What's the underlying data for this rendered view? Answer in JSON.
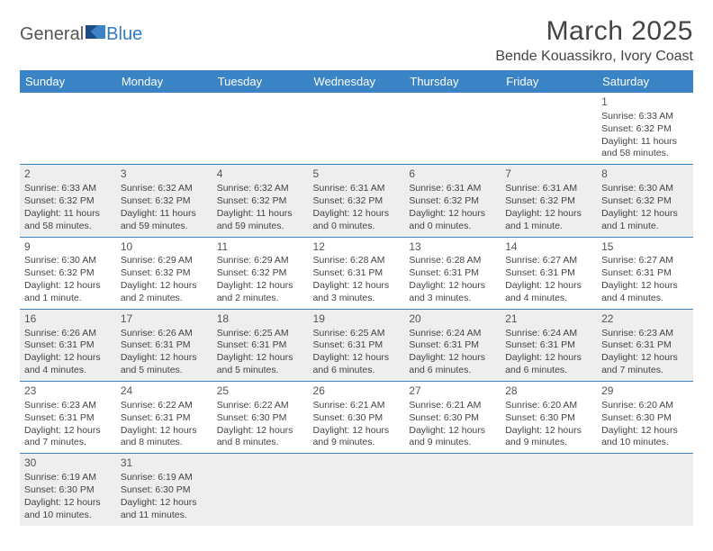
{
  "logo": {
    "general": "General",
    "blue": "Blue"
  },
  "title": "March 2025",
  "location": "Bende Kouassikro, Ivory Coast",
  "colors": {
    "header_bg": "#3a84c5",
    "header_text": "#ffffff",
    "border": "#3a84c5",
    "shade": "#eeeeee",
    "logo_blue": "#2f7ac0",
    "text": "#444444"
  },
  "day_headers": [
    "Sunday",
    "Monday",
    "Tuesday",
    "Wednesday",
    "Thursday",
    "Friday",
    "Saturday"
  ],
  "weeks": [
    [
      null,
      null,
      null,
      null,
      null,
      null,
      {
        "n": "1",
        "sr": "Sunrise: 6:33 AM",
        "ss": "Sunset: 6:32 PM",
        "dl1": "Daylight: 11 hours",
        "dl2": "and 58 minutes."
      }
    ],
    [
      {
        "n": "2",
        "sr": "Sunrise: 6:33 AM",
        "ss": "Sunset: 6:32 PM",
        "dl1": "Daylight: 11 hours",
        "dl2": "and 58 minutes."
      },
      {
        "n": "3",
        "sr": "Sunrise: 6:32 AM",
        "ss": "Sunset: 6:32 PM",
        "dl1": "Daylight: 11 hours",
        "dl2": "and 59 minutes."
      },
      {
        "n": "4",
        "sr": "Sunrise: 6:32 AM",
        "ss": "Sunset: 6:32 PM",
        "dl1": "Daylight: 11 hours",
        "dl2": "and 59 minutes."
      },
      {
        "n": "5",
        "sr": "Sunrise: 6:31 AM",
        "ss": "Sunset: 6:32 PM",
        "dl1": "Daylight: 12 hours",
        "dl2": "and 0 minutes."
      },
      {
        "n": "6",
        "sr": "Sunrise: 6:31 AM",
        "ss": "Sunset: 6:32 PM",
        "dl1": "Daylight: 12 hours",
        "dl2": "and 0 minutes."
      },
      {
        "n": "7",
        "sr": "Sunrise: 6:31 AM",
        "ss": "Sunset: 6:32 PM",
        "dl1": "Daylight: 12 hours",
        "dl2": "and 1 minute."
      },
      {
        "n": "8",
        "sr": "Sunrise: 6:30 AM",
        "ss": "Sunset: 6:32 PM",
        "dl1": "Daylight: 12 hours",
        "dl2": "and 1 minute."
      }
    ],
    [
      {
        "n": "9",
        "sr": "Sunrise: 6:30 AM",
        "ss": "Sunset: 6:32 PM",
        "dl1": "Daylight: 12 hours",
        "dl2": "and 1 minute."
      },
      {
        "n": "10",
        "sr": "Sunrise: 6:29 AM",
        "ss": "Sunset: 6:32 PM",
        "dl1": "Daylight: 12 hours",
        "dl2": "and 2 minutes."
      },
      {
        "n": "11",
        "sr": "Sunrise: 6:29 AM",
        "ss": "Sunset: 6:32 PM",
        "dl1": "Daylight: 12 hours",
        "dl2": "and 2 minutes."
      },
      {
        "n": "12",
        "sr": "Sunrise: 6:28 AM",
        "ss": "Sunset: 6:31 PM",
        "dl1": "Daylight: 12 hours",
        "dl2": "and 3 minutes."
      },
      {
        "n": "13",
        "sr": "Sunrise: 6:28 AM",
        "ss": "Sunset: 6:31 PM",
        "dl1": "Daylight: 12 hours",
        "dl2": "and 3 minutes."
      },
      {
        "n": "14",
        "sr": "Sunrise: 6:27 AM",
        "ss": "Sunset: 6:31 PM",
        "dl1": "Daylight: 12 hours",
        "dl2": "and 4 minutes."
      },
      {
        "n": "15",
        "sr": "Sunrise: 6:27 AM",
        "ss": "Sunset: 6:31 PM",
        "dl1": "Daylight: 12 hours",
        "dl2": "and 4 minutes."
      }
    ],
    [
      {
        "n": "16",
        "sr": "Sunrise: 6:26 AM",
        "ss": "Sunset: 6:31 PM",
        "dl1": "Daylight: 12 hours",
        "dl2": "and 4 minutes."
      },
      {
        "n": "17",
        "sr": "Sunrise: 6:26 AM",
        "ss": "Sunset: 6:31 PM",
        "dl1": "Daylight: 12 hours",
        "dl2": "and 5 minutes."
      },
      {
        "n": "18",
        "sr": "Sunrise: 6:25 AM",
        "ss": "Sunset: 6:31 PM",
        "dl1": "Daylight: 12 hours",
        "dl2": "and 5 minutes."
      },
      {
        "n": "19",
        "sr": "Sunrise: 6:25 AM",
        "ss": "Sunset: 6:31 PM",
        "dl1": "Daylight: 12 hours",
        "dl2": "and 6 minutes."
      },
      {
        "n": "20",
        "sr": "Sunrise: 6:24 AM",
        "ss": "Sunset: 6:31 PM",
        "dl1": "Daylight: 12 hours",
        "dl2": "and 6 minutes."
      },
      {
        "n": "21",
        "sr": "Sunrise: 6:24 AM",
        "ss": "Sunset: 6:31 PM",
        "dl1": "Daylight: 12 hours",
        "dl2": "and 6 minutes."
      },
      {
        "n": "22",
        "sr": "Sunrise: 6:23 AM",
        "ss": "Sunset: 6:31 PM",
        "dl1": "Daylight: 12 hours",
        "dl2": "and 7 minutes."
      }
    ],
    [
      {
        "n": "23",
        "sr": "Sunrise: 6:23 AM",
        "ss": "Sunset: 6:31 PM",
        "dl1": "Daylight: 12 hours",
        "dl2": "and 7 minutes."
      },
      {
        "n": "24",
        "sr": "Sunrise: 6:22 AM",
        "ss": "Sunset: 6:31 PM",
        "dl1": "Daylight: 12 hours",
        "dl2": "and 8 minutes."
      },
      {
        "n": "25",
        "sr": "Sunrise: 6:22 AM",
        "ss": "Sunset: 6:30 PM",
        "dl1": "Daylight: 12 hours",
        "dl2": "and 8 minutes."
      },
      {
        "n": "26",
        "sr": "Sunrise: 6:21 AM",
        "ss": "Sunset: 6:30 PM",
        "dl1": "Daylight: 12 hours",
        "dl2": "and 9 minutes."
      },
      {
        "n": "27",
        "sr": "Sunrise: 6:21 AM",
        "ss": "Sunset: 6:30 PM",
        "dl1": "Daylight: 12 hours",
        "dl2": "and 9 minutes."
      },
      {
        "n": "28",
        "sr": "Sunrise: 6:20 AM",
        "ss": "Sunset: 6:30 PM",
        "dl1": "Daylight: 12 hours",
        "dl2": "and 9 minutes."
      },
      {
        "n": "29",
        "sr": "Sunrise: 6:20 AM",
        "ss": "Sunset: 6:30 PM",
        "dl1": "Daylight: 12 hours",
        "dl2": "and 10 minutes."
      }
    ],
    [
      {
        "n": "30",
        "sr": "Sunrise: 6:19 AM",
        "ss": "Sunset: 6:30 PM",
        "dl1": "Daylight: 12 hours",
        "dl2": "and 10 minutes."
      },
      {
        "n": "31",
        "sr": "Sunrise: 6:19 AM",
        "ss": "Sunset: 6:30 PM",
        "dl1": "Daylight: 12 hours",
        "dl2": "and 11 minutes."
      },
      null,
      null,
      null,
      null,
      null
    ]
  ]
}
